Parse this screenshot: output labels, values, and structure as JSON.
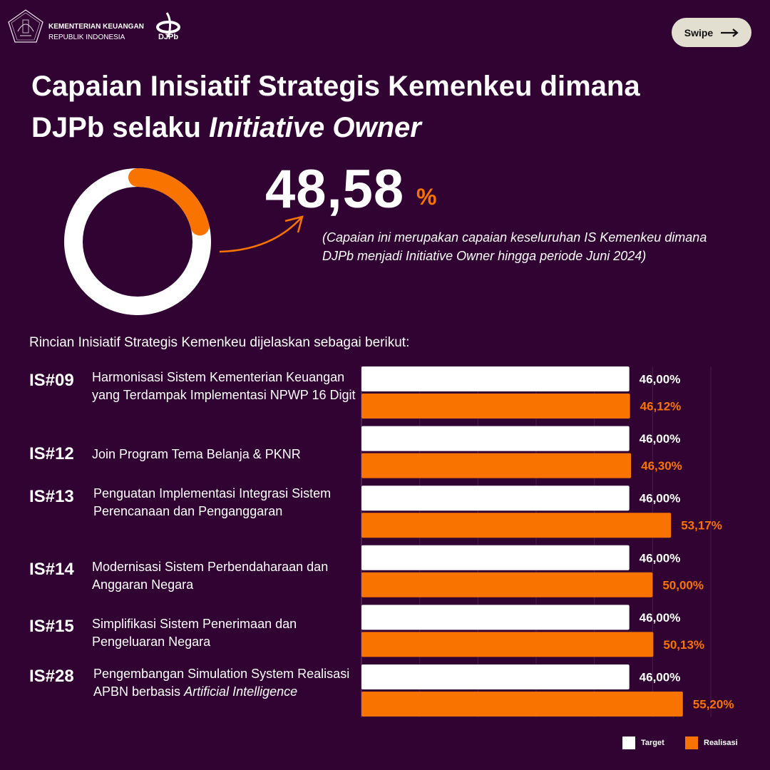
{
  "header": {
    "org_line1": "KEMENTERIAN KEUANGAN",
    "org_line2": "REPUBLIK INDONESIA",
    "brand": "DJPb",
    "swipe_label": "Swipe"
  },
  "title": {
    "part1": "Capaian Inisiatif Strategis Kemenkeu dimana",
    "part2": "DJPb selaku ",
    "part2_italic": "Initiative Owner"
  },
  "summary": {
    "value": "48,58",
    "unit": "%",
    "progress_percent": 48.58,
    "note": "(Capaian ini merupakan capaian keseluruhan IS Kemenkeu dimana DJPb menjadi Initiative Owner hingga periode Juni 2024)"
  },
  "intro": "Rincian Inisiatif Strategis Kemenkeu dijelaskan sebagai berikut:",
  "initiatives": [
    {
      "code": "IS#09",
      "desc": "Harmonisasi Sistem Kementerian Keuangan yang Terdampak Implementasi NPWP 16 Digit",
      "desc_italic": ""
    },
    {
      "code": "IS#12",
      "desc": "Join Program Tema Belanja & PKNR",
      "desc_italic": ""
    },
    {
      "code": "IS#13",
      "desc": "Penguatan Implementasi Integrasi Sistem Perencanaan dan Penganggaran",
      "desc_italic": ""
    },
    {
      "code": "IS#14",
      "desc": "Modernisasi Sistem Perbendaharaan dan Anggaran Negara",
      "desc_italic": ""
    },
    {
      "code": "IS#15",
      "desc": "Simplifikasi Sistem Penerimaan dan Pengeluaran Negara",
      "desc_italic": ""
    },
    {
      "code": "IS#28",
      "desc": "Pengembangan Simulation System Realisasi APBN berbasis ",
      "desc_italic": "Artificial Intelligence"
    }
  ],
  "colors": {
    "background": "#310333",
    "target": "#ffffff",
    "realisasi": "#f97300",
    "swipe_bg": "#e3dfd0"
  },
  "chart_data": {
    "type": "bar",
    "orientation": "horizontal",
    "categories": [
      "IS#09",
      "IS#12",
      "IS#13",
      "IS#14",
      "IS#15",
      "IS#28"
    ],
    "series": [
      {
        "name": "Target",
        "values": [
          46.0,
          46.0,
          46.0,
          46.0,
          46.0,
          46.0
        ],
        "labels": [
          "46,00%",
          "46,00%",
          "46,00%",
          "46,00%",
          "46,00%",
          "46,00%"
        ]
      },
      {
        "name": "Realisasi",
        "values": [
          46.12,
          46.3,
          53.17,
          50.0,
          50.13,
          55.2
        ],
        "labels": [
          "46,12%",
          "46,30%",
          "53,17%",
          "50,00%",
          "50,13%",
          "55,20%"
        ]
      }
    ],
    "xlim": [
      0,
      60
    ],
    "grid": true,
    "legend": "bottom-right",
    "title": "",
    "xlabel": "",
    "ylabel": ""
  }
}
